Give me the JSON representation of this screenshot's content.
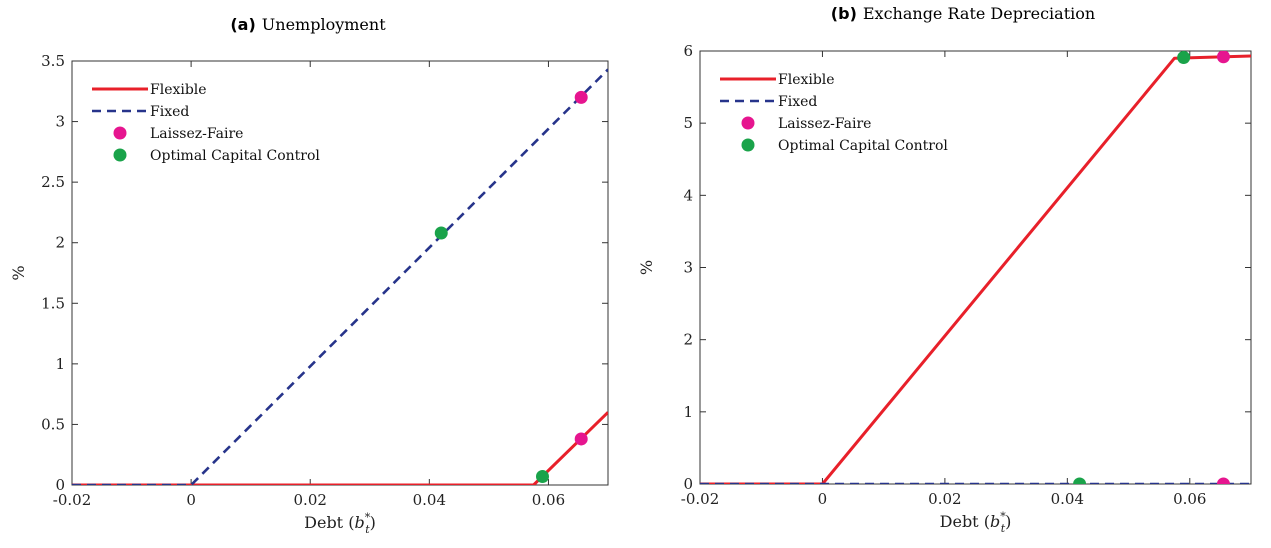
{
  "colors": {
    "flexible": "#e8202a",
    "fixed": "#27348b",
    "laissez_faire": "#e6158f",
    "optimal": "#1aa34a"
  },
  "chart_data": [
    {
      "type": "line",
      "panel_tag": "(a)",
      "title": "Unemployment",
      "xlabel": "Debt (b*_t)",
      "xlabel_main": "Debt",
      "xlabel_var": "b",
      "xlabel_sup": "*",
      "xlabel_sub": "t",
      "ylabel": "%",
      "xlim": [
        -0.02,
        0.07
      ],
      "ylim": [
        0,
        3.5
      ],
      "xticks": [
        -0.02,
        0,
        0.02,
        0.04,
        0.06
      ],
      "xtick_labels": [
        "-0.02",
        "0",
        "0.02",
        "0.04",
        "0.06"
      ],
      "yticks": [
        0,
        0.5,
        1,
        1.5,
        2,
        2.5,
        3,
        3.5
      ],
      "ytick_labels": [
        "0",
        "0.5",
        "1",
        "1.5",
        "2",
        "2.5",
        "3",
        "3.5"
      ],
      "legend_position": "top-left",
      "series": [
        {
          "name": "Flexible",
          "style": "solid",
          "color_key": "flexible",
          "x": [
            -0.02,
            0.0,
            0.0575,
            0.07
          ],
          "y": [
            0,
            0,
            0,
            0.6
          ]
        },
        {
          "name": "Fixed",
          "style": "dashed",
          "color_key": "fixed",
          "x": [
            -0.02,
            0.0,
            0.07
          ],
          "y": [
            0,
            0,
            3.43
          ]
        }
      ],
      "markers": [
        {
          "name": "Laissez-Faire",
          "color_key": "laissez_faire",
          "points": [
            [
              0.0655,
              3.2
            ],
            [
              0.0655,
              0.38
            ]
          ]
        },
        {
          "name": "Optimal Capital Control",
          "color_key": "optimal",
          "points": [
            [
              0.042,
              2.08
            ],
            [
              0.059,
              0.07
            ]
          ]
        }
      ]
    },
    {
      "type": "line",
      "panel_tag": "(b)",
      "title": "Exchange Rate Depreciation",
      "xlabel": "Debt (b*_t)",
      "xlabel_main": "Debt",
      "xlabel_var": "b",
      "xlabel_sup": "*",
      "xlabel_sub": "t",
      "ylabel": "%",
      "xlim": [
        -0.02,
        0.07
      ],
      "ylim": [
        0,
        6
      ],
      "xticks": [
        -0.02,
        0,
        0.02,
        0.04,
        0.06
      ],
      "xtick_labels": [
        "-0.02",
        "0",
        "0.02",
        "0.04",
        "0.06"
      ],
      "yticks": [
        0,
        1,
        2,
        3,
        4,
        5,
        6
      ],
      "ytick_labels": [
        "0",
        "1",
        "2",
        "3",
        "4",
        "5",
        "6"
      ],
      "legend_position": "top-left",
      "series": [
        {
          "name": "Flexible",
          "style": "solid",
          "color_key": "flexible",
          "x": [
            -0.02,
            0.0,
            0.0575,
            0.07
          ],
          "y": [
            0,
            0,
            5.9,
            5.93
          ]
        },
        {
          "name": "Fixed",
          "style": "dashed",
          "color_key": "fixed",
          "x": [
            -0.02,
            0.07
          ],
          "y": [
            0,
            0
          ]
        }
      ],
      "markers": [
        {
          "name": "Laissez-Faire",
          "color_key": "laissez_faire",
          "points": [
            [
              0.0655,
              5.92
            ],
            [
              0.0655,
              0
            ]
          ]
        },
        {
          "name": "Optimal Capital Control",
          "color_key": "optimal",
          "points": [
            [
              0.059,
              5.91
            ],
            [
              0.042,
              0
            ]
          ]
        }
      ]
    }
  ]
}
